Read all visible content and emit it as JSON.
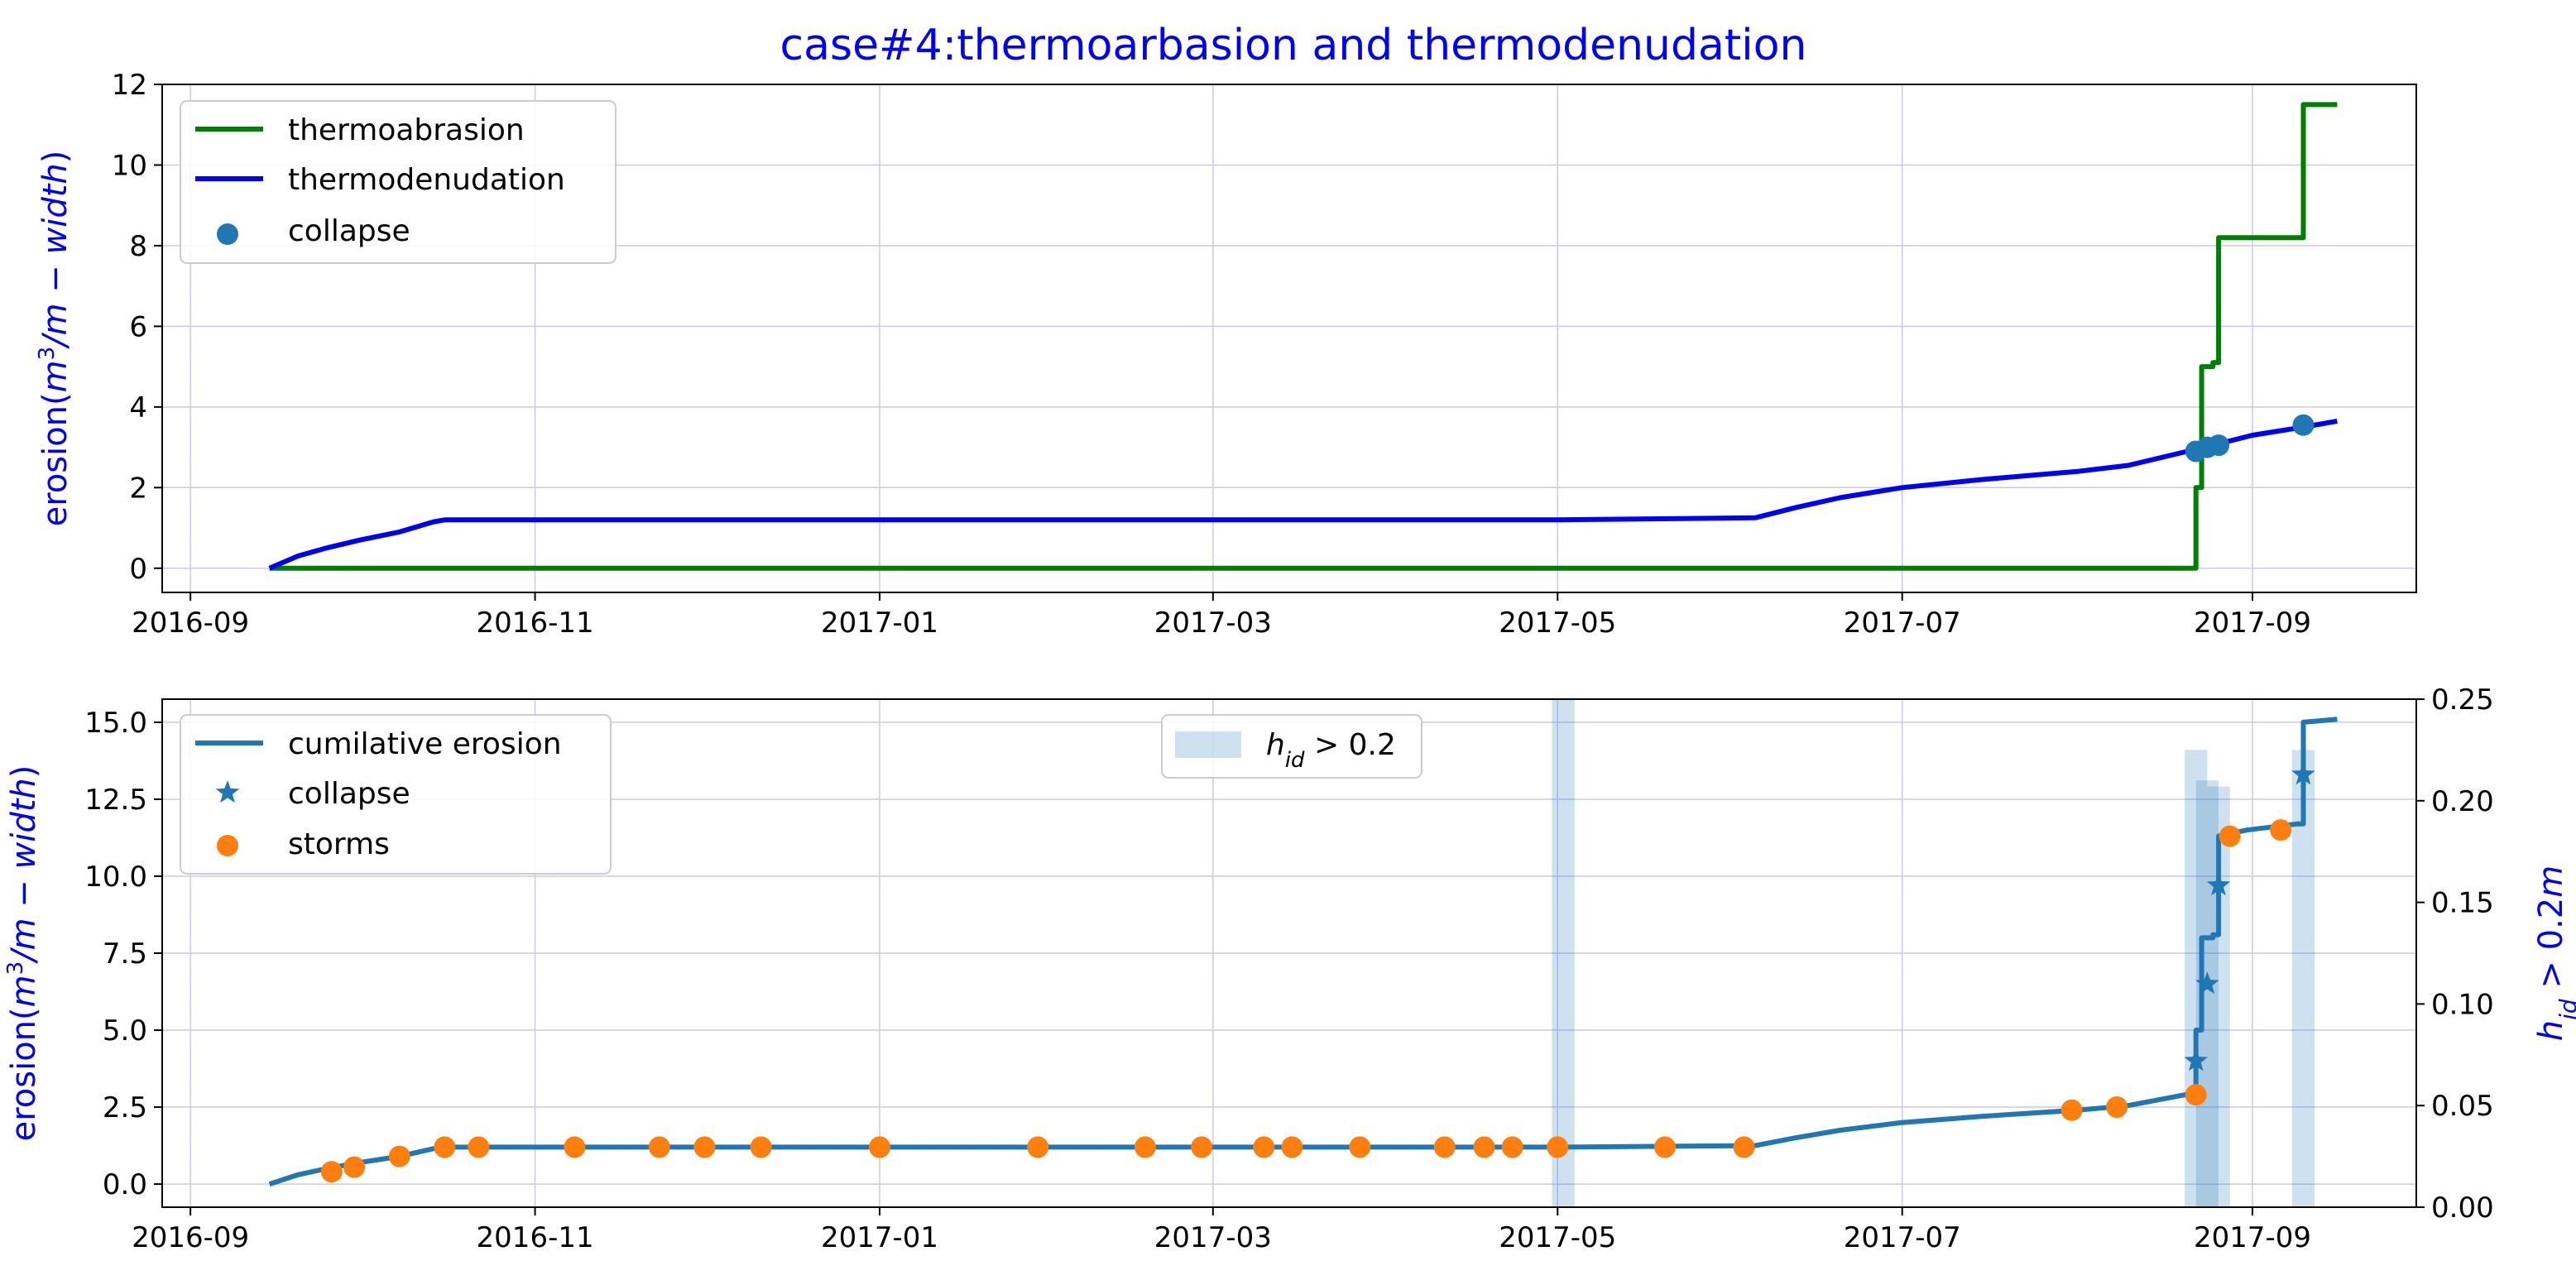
{
  "title": "case#4:thermoarbasion and thermodenudation",
  "colors": {
    "thermoabrasion": "#008000",
    "thermodenudation": "#0000ff",
    "cumulative": "#1f77b4",
    "storms": "#ff7f0e",
    "bars": "#1f77b4",
    "grid": "#c8c8f0",
    "label": "#0000ff"
  },
  "chart_data": [
    {
      "type": "line",
      "title": "case#4:thermoarbasion and thermodenudation",
      "ylabel": "erosion(m³/m − width)",
      "xlim": [
        "2016-08-27",
        "2017-09-30"
      ],
      "ylim": [
        -0.6,
        12
      ],
      "xticks": [
        "2016-09",
        "2016-11",
        "2017-01",
        "2017-03",
        "2017-05",
        "2017-07",
        "2017-09"
      ],
      "yticks": [
        "0",
        "2",
        "4",
        "6",
        "8",
        "10",
        "12"
      ],
      "grid": true,
      "legend": "upper left",
      "series": [
        {
          "name": "thermoabrasion",
          "x": [
            "2016-09-15",
            "2017-08-22",
            "2017-08-22",
            "2017-08-23",
            "2017-08-23",
            "2017-08-25",
            "2017-08-25",
            "2017-08-26",
            "2017-08-26",
            "2017-09-10",
            "2017-09-10",
            "2017-09-16"
          ],
          "y": [
            0,
            0,
            2.0,
            2.0,
            5.0,
            5.0,
            5.1,
            5.1,
            8.2,
            8.2,
            11.5,
            11.5
          ]
        },
        {
          "name": "thermodenudation",
          "x": [
            "2016-09-15",
            "2016-09-20",
            "2016-09-25",
            "2016-10-01",
            "2016-10-08",
            "2016-10-14",
            "2016-10-16",
            "2017-05-01",
            "2017-06-05",
            "2017-06-12",
            "2017-06-20",
            "2017-07-01",
            "2017-07-15",
            "2017-08-01",
            "2017-08-10",
            "2017-08-22",
            "2017-08-25",
            "2017-09-01",
            "2017-09-10",
            "2017-09-16"
          ],
          "y": [
            0,
            0.3,
            0.5,
            0.7,
            0.9,
            1.15,
            1.2,
            1.2,
            1.25,
            1.5,
            1.75,
            2.0,
            2.2,
            2.4,
            2.55,
            2.95,
            3.05,
            3.3,
            3.5,
            3.65
          ]
        }
      ],
      "collapse": {
        "name": "collapse",
        "x": [
          "2017-08-22",
          "2017-08-24",
          "2017-08-26",
          "2017-09-10"
        ],
        "y": [
          2.9,
          3.0,
          3.05,
          3.55
        ]
      }
    },
    {
      "type": "line",
      "ylabel": "erosion(m³/m − width)",
      "ylabel_right": "h_id > 0.2m",
      "xlim": [
        "2016-08-27",
        "2017-09-30"
      ],
      "ylim": [
        -0.75,
        15.75
      ],
      "ylim_right": [
        0,
        0.25
      ],
      "xticks": [
        "2016-09",
        "2016-11",
        "2017-01",
        "2017-03",
        "2017-05",
        "2017-07",
        "2017-09"
      ],
      "yticks": [
        "0.0",
        "2.5",
        "5.0",
        "7.5",
        "10.0",
        "12.5",
        "15.0"
      ],
      "yticks_right": [
        "0.00",
        "0.05",
        "0.10",
        "0.15",
        "0.20",
        "0.25"
      ],
      "grid": true,
      "legend": "upper left",
      "legend2": "upper center",
      "series": [
        {
          "name": "cumilative erosion",
          "x": [
            "2016-09-15",
            "2016-09-20",
            "2016-09-25",
            "2016-10-01",
            "2016-10-08",
            "2016-10-14",
            "2016-10-16",
            "2017-05-01",
            "2017-06-05",
            "2017-06-12",
            "2017-06-20",
            "2017-07-01",
            "2017-07-15",
            "2017-08-01",
            "2017-08-10",
            "2017-08-20",
            "2017-08-22",
            "2017-08-22",
            "2017-08-23",
            "2017-08-23",
            "2017-08-25",
            "2017-08-25",
            "2017-08-26",
            "2017-08-26",
            "2017-08-31",
            "2017-09-09",
            "2017-09-10",
            "2017-09-10",
            "2017-09-16"
          ],
          "y": [
            0,
            0.3,
            0.5,
            0.7,
            0.9,
            1.15,
            1.2,
            1.2,
            1.25,
            1.5,
            1.75,
            2.0,
            2.2,
            2.4,
            2.55,
            2.9,
            3.0,
            5.0,
            5.0,
            8.0,
            8.0,
            8.1,
            8.1,
            11.3,
            11.5,
            11.7,
            11.7,
            15.0,
            15.1
          ]
        }
      ],
      "collapse": {
        "name": "collapse",
        "x": [
          "2017-08-22",
          "2017-08-24",
          "2017-08-26",
          "2017-09-10"
        ],
        "y": [
          4.0,
          6.5,
          9.7,
          13.3
        ]
      },
      "storms": {
        "name": "storms",
        "x": [
          "2016-09-26",
          "2016-09-30",
          "2016-10-08",
          "2016-10-16",
          "2016-10-22",
          "2016-11-08",
          "2016-11-23",
          "2016-12-01",
          "2016-12-11",
          "2017-01-01",
          "2017-01-29",
          "2017-02-17",
          "2017-02-27",
          "2017-03-10",
          "2017-03-15",
          "2017-03-27",
          "2017-04-11",
          "2017-04-18",
          "2017-04-23",
          "2017-05-01",
          "2017-05-20",
          "2017-06-03",
          "2017-07-31",
          "2017-08-08",
          "2017-08-22",
          "2017-08-28",
          "2017-09-06"
        ],
        "y": [
          0.4,
          0.55,
          0.9,
          1.2,
          1.2,
          1.2,
          1.2,
          1.2,
          1.2,
          1.2,
          1.2,
          1.2,
          1.2,
          1.2,
          1.2,
          1.2,
          1.2,
          1.2,
          1.2,
          1.2,
          1.2,
          1.2,
          2.4,
          2.5,
          2.9,
          11.3,
          11.5
        ]
      },
      "bars": {
        "name": "h_id > 0.2",
        "axis": "right",
        "x": [
          "2017-05-02",
          "2017-08-22",
          "2017-08-24",
          "2017-08-26",
          "2017-09-10"
        ],
        "values": [
          0.25,
          0.225,
          0.21,
          0.207,
          0.225
        ],
        "width_days": 4
      }
    }
  ]
}
